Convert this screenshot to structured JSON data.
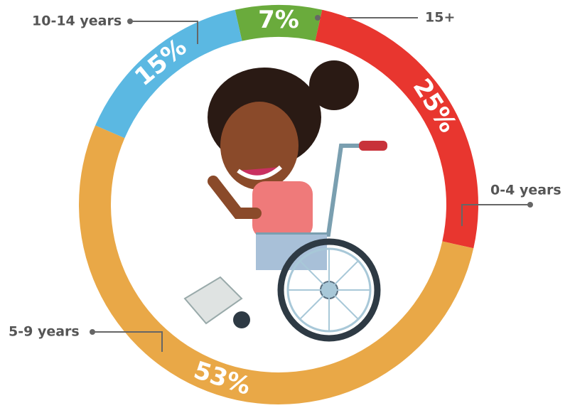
{
  "chart_data": {
    "type": "donut",
    "categories": [
      "15+",
      "0-4 years",
      "5-9 years",
      "10-14 years"
    ],
    "values": [
      7,
      25,
      53,
      15
    ],
    "value_labels": [
      "7%",
      "25%",
      "53%",
      "15%"
    ],
    "colors": [
      "#6aab3c",
      "#e8362f",
      "#e9a847",
      "#5bb8e2"
    ]
  }
}
